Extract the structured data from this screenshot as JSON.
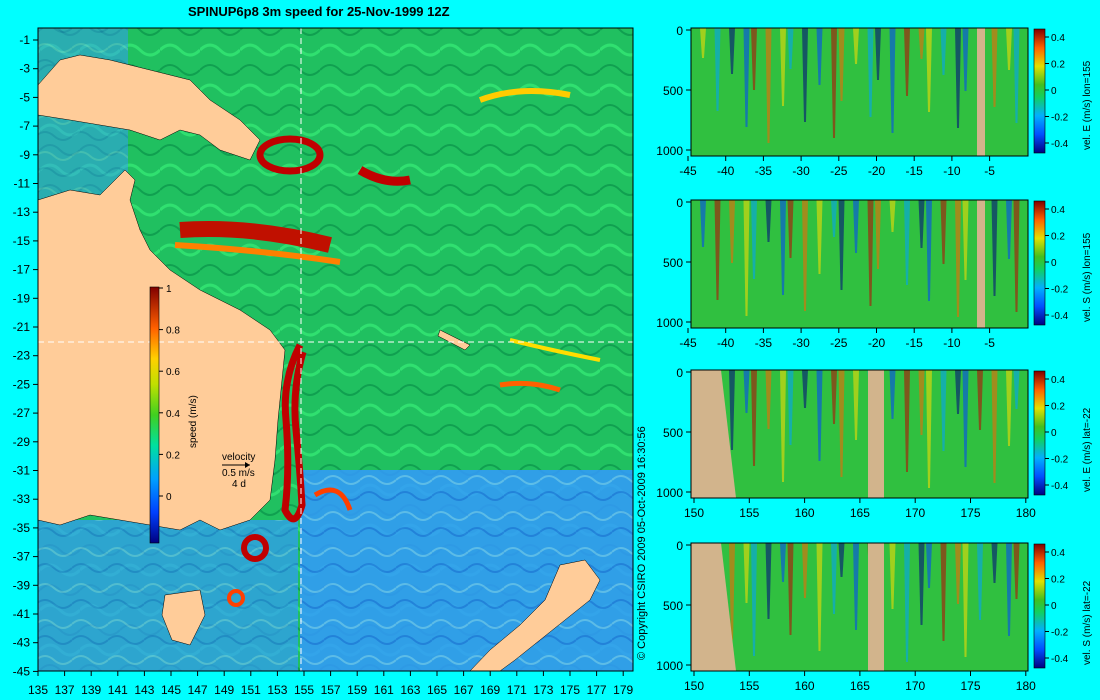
{
  "title": "SPINUP6p8 3m speed for 25-Nov-1999 12Z",
  "copyright": "© Copyright CSIRO 2009   05-Oct-2009 16:30:56",
  "colors": {
    "background": "#00ffff",
    "land": "#ffcc99",
    "panel_mask": "#d2b48c",
    "section_line": "#ffffff"
  },
  "map": {
    "lat_ticks": [
      "-1",
      "-3",
      "-5",
      "-7",
      "-9",
      "-11",
      "-13",
      "-15",
      "-17",
      "-19",
      "-21",
      "-23",
      "-25",
      "-27",
      "-29",
      "-31",
      "-33",
      "-35",
      "-37",
      "-39",
      "-41",
      "-43",
      "-45"
    ],
    "lon_ticks": [
      "135",
      "137",
      "139",
      "141",
      "143",
      "145",
      "147",
      "149",
      "151",
      "153",
      "155",
      "157",
      "159",
      "161",
      "163",
      "165",
      "167",
      "169",
      "171",
      "173",
      "175",
      "177",
      "179"
    ],
    "section_lon": 155,
    "section_lat": -22,
    "colorbar": {
      "label": "speed (m/s)",
      "ticks": [
        "1",
        "0.8",
        "0.6",
        "0.4",
        "0.2",
        "0"
      ]
    },
    "velocity_legend": {
      "title": "velocity",
      "speed": "0.5 m/s",
      "duration": "4 d"
    }
  },
  "panels": [
    {
      "label": "vel. E (m/s) lon=155",
      "x_ticks": [
        "-45",
        "-40",
        "-35",
        "-30",
        "-25",
        "-20",
        "-15",
        "-10",
        "-5"
      ],
      "y_ticks": [
        "0",
        "500",
        "1000"
      ],
      "cb_ticks": [
        "0.4",
        "0.2",
        "0",
        "-0.2",
        "-0.4"
      ]
    },
    {
      "label": "vel. S (m/s) lon=155",
      "x_ticks": [
        "-45",
        "-40",
        "-35",
        "-30",
        "-25",
        "-20",
        "-15",
        "-10",
        "-5"
      ],
      "y_ticks": [
        "0",
        "500",
        "1000"
      ],
      "cb_ticks": [
        "0.4",
        "0.2",
        "0",
        "-0.2",
        "-0.4"
      ]
    },
    {
      "label": "vel. E (m/s) lat=-22",
      "x_ticks": [
        "150",
        "155",
        "160",
        "165",
        "170",
        "175",
        "180"
      ],
      "y_ticks": [
        "0",
        "500",
        "1000"
      ],
      "cb_ticks": [
        "0.4",
        "0.2",
        "0",
        "-0.2",
        "-0.4"
      ]
    },
    {
      "label": "vel. S (m/s) lat=-22",
      "x_ticks": [
        "150",
        "155",
        "160",
        "165",
        "170",
        "175",
        "180"
      ],
      "y_ticks": [
        "0",
        "500",
        "1000"
      ],
      "cb_ticks": [
        "0.4",
        "0.2",
        "0",
        "-0.2",
        "-0.4"
      ]
    }
  ]
}
